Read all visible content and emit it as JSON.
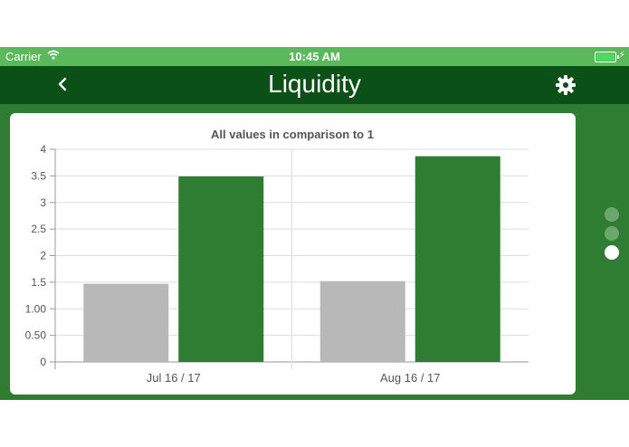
{
  "status_bar": {
    "carrier": "Carrier",
    "time": "10:45 AM"
  },
  "nav": {
    "title": "Liquidity"
  },
  "page_indicator": {
    "count": 3,
    "active_index": 2
  },
  "colors": {
    "status_bar": "#5cb85c",
    "nav_bar": "#0b5016",
    "background": "#2e7d32",
    "bar_gray": "#b8b8b8",
    "bar_green": "#2e7d32"
  },
  "chart_data": {
    "type": "bar",
    "title": "All values in comparison to 1",
    "categories": [
      "Jul 16 / 17",
      "Aug 16 / 17"
    ],
    "series": [
      {
        "values": [
          1.47,
          1.52
        ],
        "color": "#b8b8b8"
      },
      {
        "values": [
          3.49,
          3.87
        ],
        "color": "#2e7d32"
      }
    ],
    "yticks": [
      "0",
      "0.50",
      "1.00",
      "1.5",
      "2",
      "2.5",
      "3",
      "3.5",
      "4"
    ],
    "ylim": [
      0,
      4
    ],
    "grid": true
  }
}
